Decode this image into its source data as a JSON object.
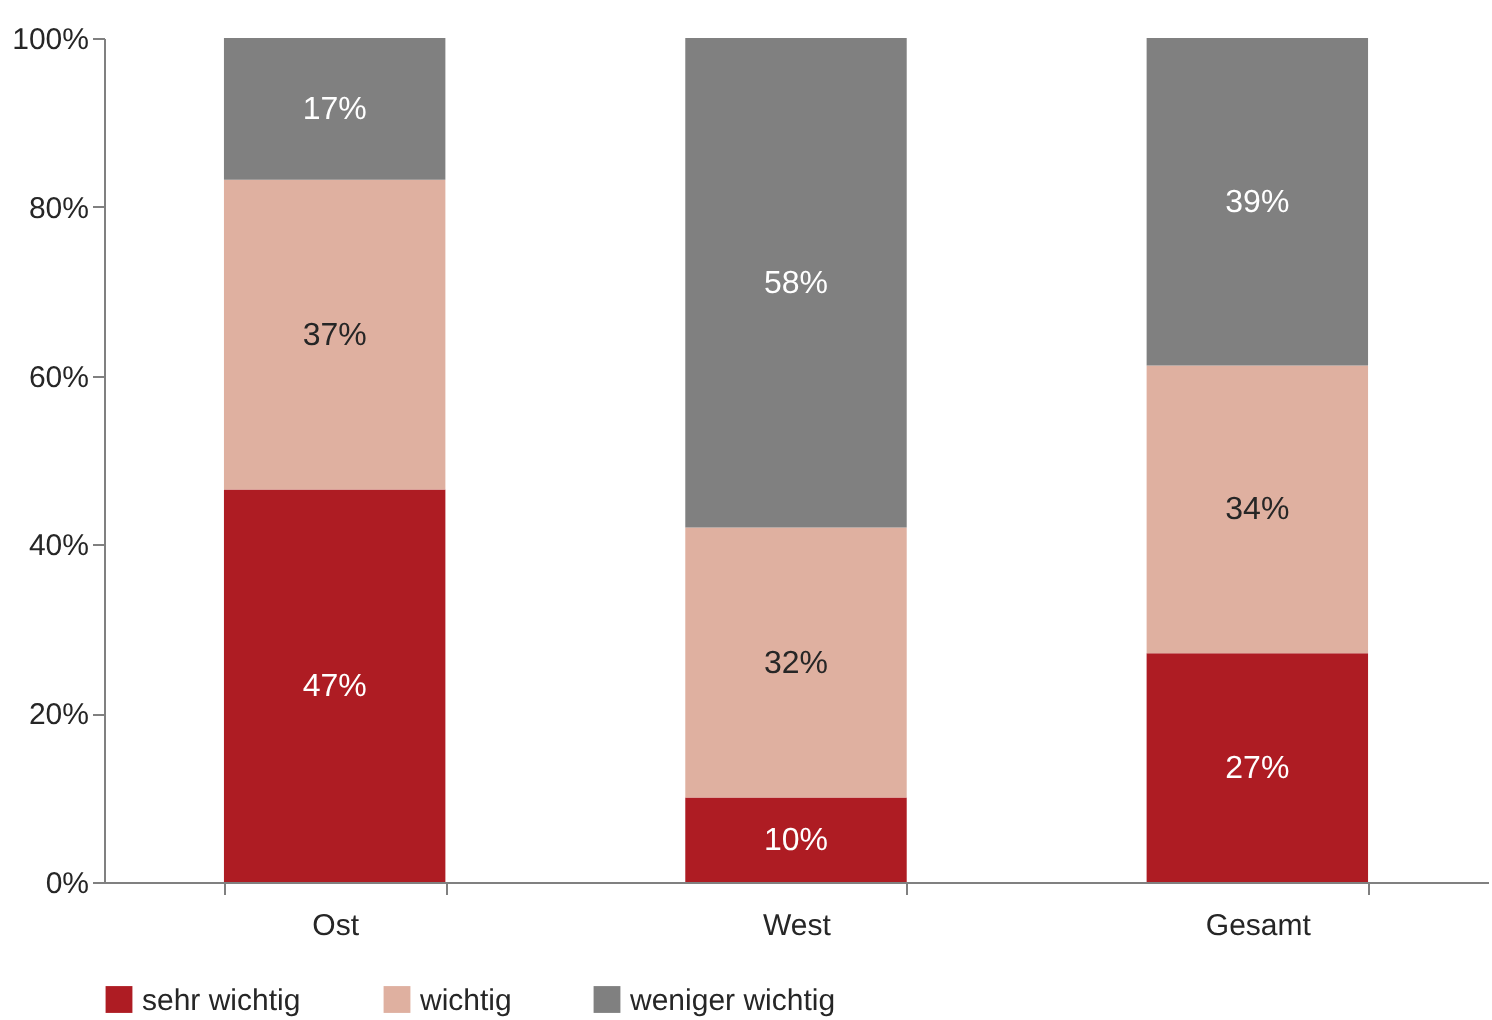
{
  "chart_data": {
    "type": "bar",
    "stacked": true,
    "categories": [
      "Ost",
      "West",
      "Gesamt"
    ],
    "series": [
      {
        "name": "sehr wichtig",
        "color": "#ae1c23",
        "values": [
          46.5,
          10,
          27.1
        ],
        "value_labels": [
          "47%",
          "10%",
          "27%"
        ]
      },
      {
        "name": "wichtig",
        "color": "#dfb0a0",
        "values": [
          36.7,
          32,
          34.1
        ],
        "value_labels": [
          "37%",
          "32%",
          "34%"
        ]
      },
      {
        "name": "weniger wichtig",
        "color": "#808080",
        "values": [
          16.8,
          58,
          38.8
        ],
        "value_labels": [
          "17%",
          "58%",
          "39%"
        ]
      }
    ],
    "ylim": [
      0,
      100
    ],
    "yticks": [
      {
        "value": 0,
        "label": "0%"
      },
      {
        "value": 20,
        "label": "20%"
      },
      {
        "value": 40,
        "label": "40%"
      },
      {
        "value": 60,
        "label": "60%"
      },
      {
        "value": 80,
        "label": "80%"
      },
      {
        "value": 100,
        "label": "100%"
      }
    ],
    "grid": false,
    "legend": "bottom"
  }
}
